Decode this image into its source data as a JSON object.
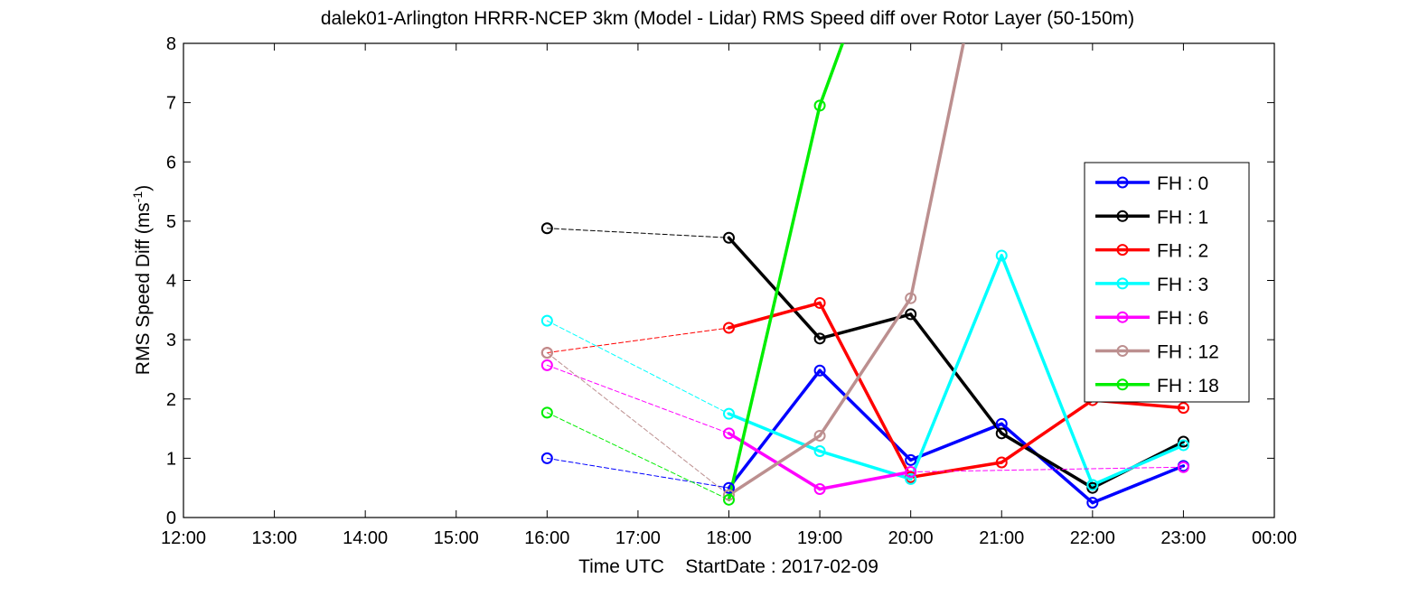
{
  "chart_data": {
    "type": "line",
    "title": "dalek01-Arlington HRRR-NCEP 3km (Model - Lidar) RMS Speed diff over Rotor Layer (50-150m)",
    "xlabel": "Time UTC    StartDate : 2017-02-09",
    "ylabel": "RMS Speed Diff (ms",
    "ylabel_sup": "-1",
    "ylabel_close": ")",
    "x_tick_labels": [
      "12:00",
      "13:00",
      "14:00",
      "15:00",
      "16:00",
      "17:00",
      "18:00",
      "19:00",
      "20:00",
      "21:00",
      "22:00",
      "23:00",
      "00:00"
    ],
    "xlim": [
      12,
      24
    ],
    "y_tick_labels": [
      "0",
      "1",
      "2",
      "3",
      "4",
      "5",
      "6",
      "7",
      "8"
    ],
    "ylim": [
      0,
      8
    ],
    "grid": false,
    "legend_position": "right",
    "series": [
      {
        "name": "FH : 0",
        "color": "#0000ff",
        "x": [
          16,
          18,
          19,
          20,
          21,
          22,
          23
        ],
        "y": [
          1.0,
          0.5,
          2.48,
          0.97,
          1.58,
          0.25,
          0.87
        ],
        "segment_style": [
          "dashed",
          "solid",
          "solid",
          "solid",
          "solid",
          "solid"
        ]
      },
      {
        "name": "FH : 1",
        "color": "#000000",
        "x": [
          16,
          18,
          19,
          20,
          21,
          22,
          23
        ],
        "y": [
          4.88,
          4.72,
          3.02,
          3.43,
          1.42,
          0.5,
          1.28
        ],
        "segment_style": [
          "dashed",
          "solid",
          "solid",
          "solid",
          "solid",
          "solid"
        ]
      },
      {
        "name": "FH : 2",
        "color": "#ff0000",
        "x": [
          16,
          18,
          19,
          20,
          21,
          22,
          23
        ],
        "y": [
          2.78,
          3.2,
          3.62,
          0.68,
          0.93,
          1.98,
          1.85
        ],
        "segment_style": [
          "dashed",
          "solid",
          "solid",
          "solid",
          "solid",
          "solid"
        ]
      },
      {
        "name": "FH : 3",
        "color": "#00ffff",
        "x": [
          16,
          18,
          19,
          20,
          21,
          22,
          23
        ],
        "y": [
          3.32,
          1.75,
          1.12,
          0.65,
          4.42,
          0.55,
          1.22
        ],
        "segment_style": [
          "dashed",
          "solid",
          "solid",
          "solid",
          "solid",
          "solid"
        ]
      },
      {
        "name": "FH : 6",
        "color": "#ff00ff",
        "x": [
          16,
          18,
          19,
          20,
          23
        ],
        "y": [
          2.57,
          1.42,
          0.48,
          0.77,
          0.85
        ],
        "segment_style": [
          "dashed",
          "solid",
          "solid",
          "dashed"
        ]
      },
      {
        "name": "FH : 12",
        "color": "#bc8f8f",
        "x": [
          16,
          18,
          19,
          20,
          20.58
        ],
        "y": [
          2.78,
          0.38,
          1.38,
          3.7,
          8.0
        ],
        "marker": [
          true,
          true,
          true,
          true,
          false
        ],
        "segment_style": [
          "dashed",
          "solid",
          "solid",
          "solid"
        ]
      },
      {
        "name": "FH : 18",
        "color": "#00ee00",
        "x": [
          16,
          18,
          19,
          19.25
        ],
        "y": [
          1.77,
          0.3,
          6.95,
          8.0
        ],
        "marker": [
          true,
          true,
          true,
          false
        ],
        "segment_style": [
          "dashed",
          "solid",
          "solid"
        ]
      }
    ]
  }
}
